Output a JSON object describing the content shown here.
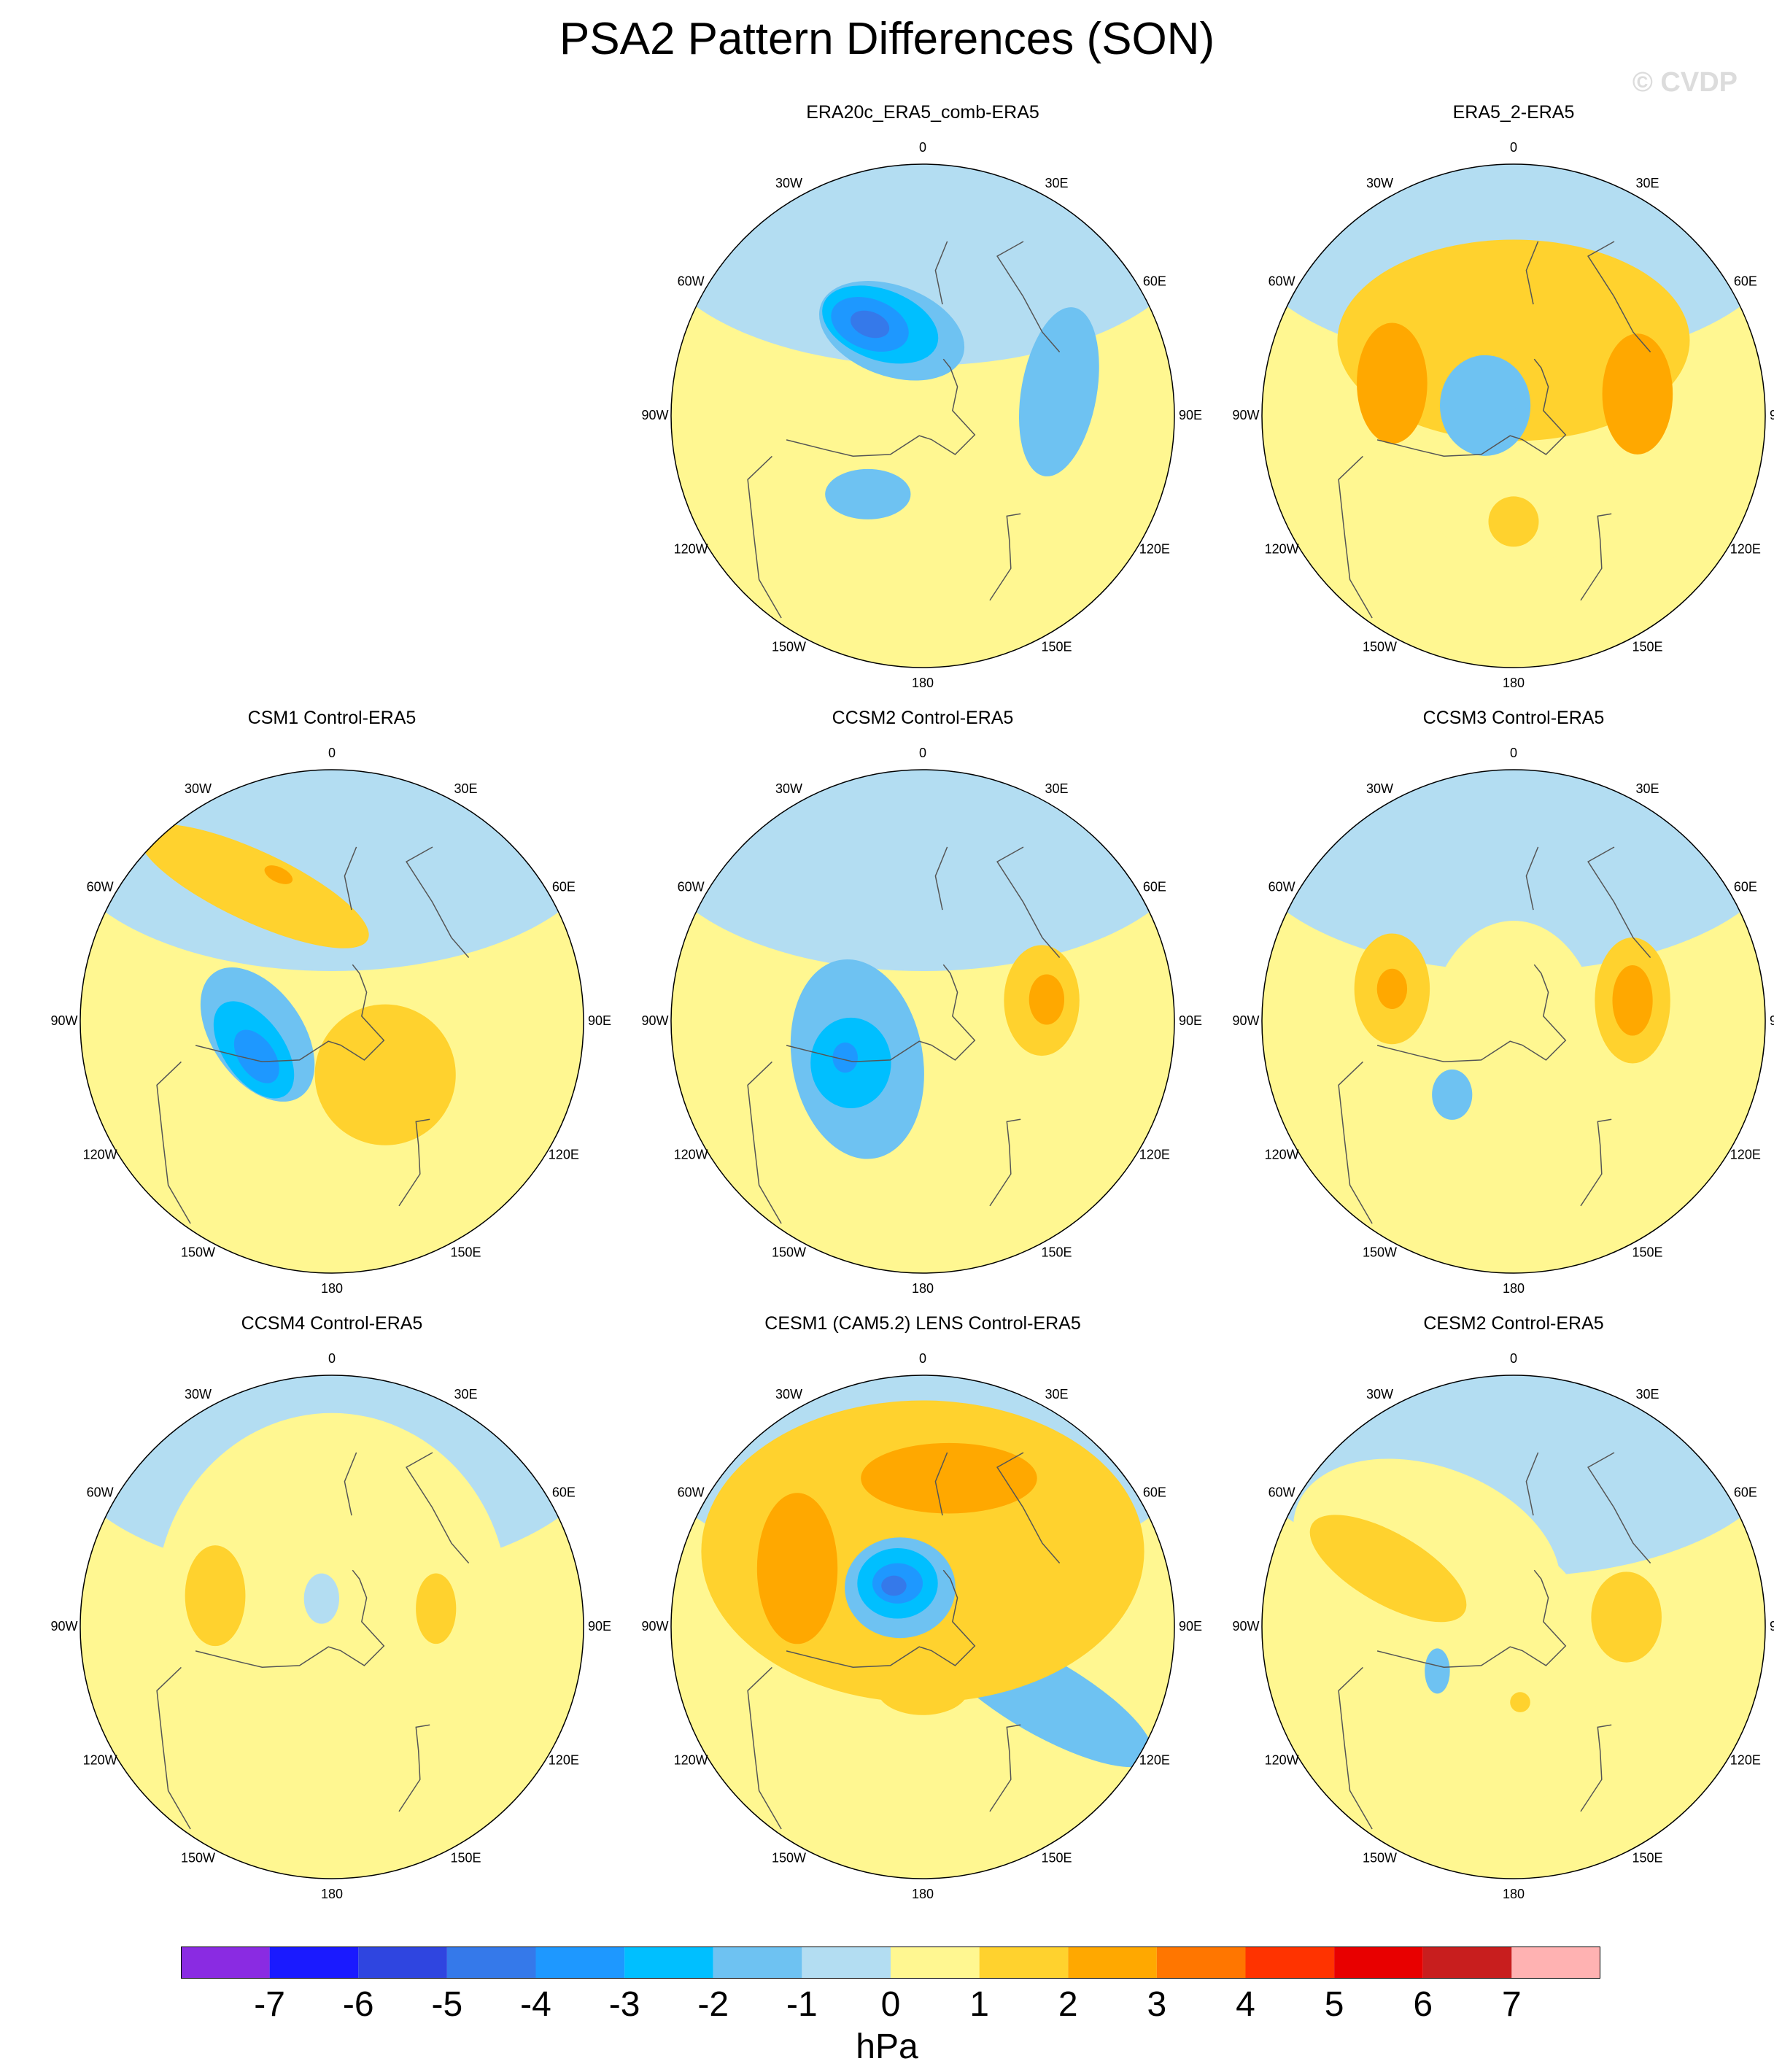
{
  "title": "PSA2 Pattern Differences (SON)",
  "watermark": "© CVDP",
  "chart_data": {
    "type": "heatmap",
    "projection": "south-polar-stereographic",
    "variable_units": "hPa",
    "colorbar": {
      "labels": [
        "-7",
        "-6",
        "-5",
        "-4",
        "-3",
        "-2",
        "-1",
        "0",
        "1",
        "2",
        "3",
        "4",
        "5",
        "6",
        "7"
      ],
      "colors": [
        "#8a2be2",
        "#1a1aff",
        "#2f45e0",
        "#3579ea",
        "#1e98ff",
        "#00bfff",
        "#6ec2f2",
        "#b3ddf2",
        "#fff791",
        "#ffd22e",
        "#ffa800",
        "#ff7600",
        "#ff3300",
        "#e80000",
        "#c81e1e",
        "#ffb2b2"
      ]
    },
    "longitude_labels": [
      "0",
      "30E",
      "60E",
      "90E",
      "120E",
      "150E",
      "180",
      "150W",
      "120W",
      "90W",
      "60W",
      "30W"
    ],
    "panels": [
      {
        "title": "ERA20c_ERA5_comb-ERA5",
        "blobs": [
          {
            "lon": -35,
            "r": 0.38,
            "rx": 0.17,
            "ry": 0.1,
            "rot": 0,
            "v": -2
          },
          {
            "lon": 100,
            "r": 0.55,
            "rx": 0.15,
            "ry": 0.34,
            "rot": 10,
            "v": -2
          },
          {
            "lon": -160,
            "r": 0.36,
            "rx": 0.3,
            "ry": 0.18,
            "rot": 20,
            "v": -1.5
          },
          {
            "lon": -155,
            "r": 0.4,
            "rx": 0.24,
            "ry": 0.14,
            "rot": 20,
            "v": -2.5
          },
          {
            "lon": -150,
            "r": 0.42,
            "rx": 0.16,
            "ry": 0.1,
            "rot": 20,
            "v": -3.5
          },
          {
            "lon": -150,
            "r": 0.42,
            "rx": 0.08,
            "ry": 0.05,
            "rot": 20,
            "v": -4.5
          }
        ]
      },
      {
        "title": "ERA5_2-ERA5",
        "blobs": [
          {
            "lon": 0,
            "r": 0.15,
            "rx": 0.4,
            "ry": 0.45,
            "rot": 0,
            "v": 0.8
          },
          {
            "lon": 180,
            "r": 0.3,
            "rx": 0.7,
            "ry": 0.4,
            "rot": 0,
            "v": 1.3
          },
          {
            "lon": -105,
            "r": 0.5,
            "rx": 0.14,
            "ry": 0.24,
            "rot": 0,
            "v": 2.5
          },
          {
            "lon": 100,
            "r": 0.5,
            "rx": 0.14,
            "ry": 0.24,
            "rot": 0,
            "v": 2.5
          },
          {
            "lon": 0,
            "r": 0.42,
            "rx": 0.1,
            "ry": 0.1,
            "rot": 0,
            "v": 1.5
          },
          {
            "lon": -110,
            "r": 0.12,
            "rx": 0.18,
            "ry": 0.2,
            "rot": 0,
            "v": -1.5
          },
          {
            "lon": -150,
            "r": 0.12,
            "rx": 0.1,
            "ry": 0.1,
            "rot": 0,
            "v": -2
          }
        ]
      },
      {
        "title": "CSM1 Control-ERA5",
        "blobs": [
          {
            "lon": -80,
            "r": 0.3,
            "rx": 0.18,
            "ry": 0.3,
            "rot": -35,
            "v": -1.5
          },
          {
            "lon": -70,
            "r": 0.33,
            "rx": 0.12,
            "ry": 0.22,
            "rot": -35,
            "v": -2.5
          },
          {
            "lon": -65,
            "r": 0.33,
            "rx": 0.07,
            "ry": 0.12,
            "rot": -35,
            "v": -3.5
          },
          {
            "lon": -150,
            "r": 0.62,
            "rx": 0.5,
            "ry": 0.14,
            "rot": 25,
            "v": 1.3
          },
          {
            "lon": 45,
            "r": 0.3,
            "rx": 0.28,
            "ry": 0.28,
            "rot": 0,
            "v": 1.3
          },
          {
            "lon": -160,
            "r": 0.62,
            "rx": 0.06,
            "ry": 0.03,
            "rot": 25,
            "v": 2.5
          }
        ]
      },
      {
        "title": "CCSM2 Control-ERA5",
        "blobs": [
          {
            "lon": -60,
            "r": 0.3,
            "rx": 0.26,
            "ry": 0.4,
            "rot": -10,
            "v": -1.5
          },
          {
            "lon": -60,
            "r": 0.33,
            "rx": 0.16,
            "ry": 0.18,
            "rot": 0,
            "v": -2.5
          },
          {
            "lon": -65,
            "r": 0.34,
            "rx": 0.05,
            "ry": 0.06,
            "rot": 0,
            "v": -3.5
          },
          {
            "lon": 100,
            "r": 0.48,
            "rx": 0.15,
            "ry": 0.22,
            "rot": 0,
            "v": 1.4
          },
          {
            "lon": 100,
            "r": 0.5,
            "rx": 0.07,
            "ry": 0.1,
            "rot": 0,
            "v": 2.5
          }
        ]
      },
      {
        "title": "CCSM3 Control-ERA5",
        "blobs": [
          {
            "lon": 0,
            "r": 0.1,
            "rx": 0.35,
            "ry": 0.5,
            "rot": 0,
            "v": 0.8
          },
          {
            "lon": -105,
            "r": 0.5,
            "rx": 0.15,
            "ry": 0.22,
            "rot": 0,
            "v": 1.4
          },
          {
            "lon": 100,
            "r": 0.48,
            "rx": 0.15,
            "ry": 0.25,
            "rot": 0,
            "v": 1.4
          },
          {
            "lon": -105,
            "r": 0.5,
            "rx": 0.06,
            "ry": 0.08,
            "rot": 0,
            "v": 2.5
          },
          {
            "lon": 100,
            "r": 0.48,
            "rx": 0.08,
            "ry": 0.14,
            "rot": 0,
            "v": 2.5
          },
          {
            "lon": -40,
            "r": 0.38,
            "rx": 0.08,
            "ry": 0.1,
            "rot": 0,
            "v": -2
          }
        ]
      },
      {
        "title": "CCSM4 Control-ERA5",
        "blobs": [
          {
            "lon": 180,
            "r": 0.1,
            "rx": 0.7,
            "ry": 0.75,
            "rot": 0,
            "v": 0.7
          },
          {
            "lon": -105,
            "r": 0.48,
            "rx": 0.12,
            "ry": 0.2,
            "rot": 0,
            "v": 1.4
          },
          {
            "lon": 100,
            "r": 0.42,
            "rx": 0.08,
            "ry": 0.14,
            "rot": 0,
            "v": 1.4
          },
          {
            "lon": -160,
            "r": 0.12,
            "rx": 0.07,
            "ry": 0.1,
            "rot": 0,
            "v": -0.5
          }
        ]
      },
      {
        "title": "CESM1 (CAM5.2) LENS Control-ERA5",
        "blobs": [
          {
            "lon": 60,
            "r": 0.55,
            "rx": 0.5,
            "ry": 0.15,
            "rot": 30,
            "v": -1.6
          },
          {
            "lon": 180,
            "r": 0.3,
            "rx": 0.88,
            "ry": 0.6,
            "rot": 0,
            "v": 1.3
          },
          {
            "lon": -115,
            "r": 0.55,
            "rx": 0.16,
            "ry": 0.3,
            "rot": 0,
            "v": 2.5
          },
          {
            "lon": 170,
            "r": 0.6,
            "rx": 0.35,
            "ry": 0.14,
            "rot": 0,
            "v": 2.5
          },
          {
            "lon": 0,
            "r": 0.25,
            "rx": 0.18,
            "ry": 0.1,
            "rot": 0,
            "v": 1.6
          },
          {
            "lon": -150,
            "r": 0.18,
            "rx": 0.22,
            "ry": 0.2,
            "rot": 0,
            "v": -1.5
          },
          {
            "lon": -150,
            "r": 0.2,
            "rx": 0.16,
            "ry": 0.14,
            "rot": 0,
            "v": -2.5
          },
          {
            "lon": -150,
            "r": 0.2,
            "rx": 0.1,
            "ry": 0.08,
            "rot": 0,
            "v": -3.5
          },
          {
            "lon": -145,
            "r": 0.2,
            "rx": 0.05,
            "ry": 0.04,
            "rot": 0,
            "v": -4.5
          }
        ]
      },
      {
        "title": "CESM2 Control-ERA5",
        "blobs": [
          {
            "lon": 10,
            "r": 0.2,
            "rx": 0.3,
            "ry": 0.5,
            "rot": 0,
            "v": 0.8
          },
          {
            "lon": -130,
            "r": 0.45,
            "rx": 0.55,
            "ry": 0.35,
            "rot": 20,
            "v": 0.8
          },
          {
            "lon": -115,
            "r": 0.55,
            "rx": 0.35,
            "ry": 0.14,
            "rot": 30,
            "v": 1.4
          },
          {
            "lon": 95,
            "r": 0.45,
            "rx": 0.14,
            "ry": 0.18,
            "rot": 0,
            "v": 1.4
          },
          {
            "lon": -60,
            "r": 0.35,
            "rx": 0.05,
            "ry": 0.09,
            "rot": 0,
            "v": -1.5
          },
          {
            "lon": 5,
            "r": 0.3,
            "rx": 0.04,
            "ry": 0.04,
            "rot": 0,
            "v": 1.3
          }
        ]
      }
    ]
  }
}
